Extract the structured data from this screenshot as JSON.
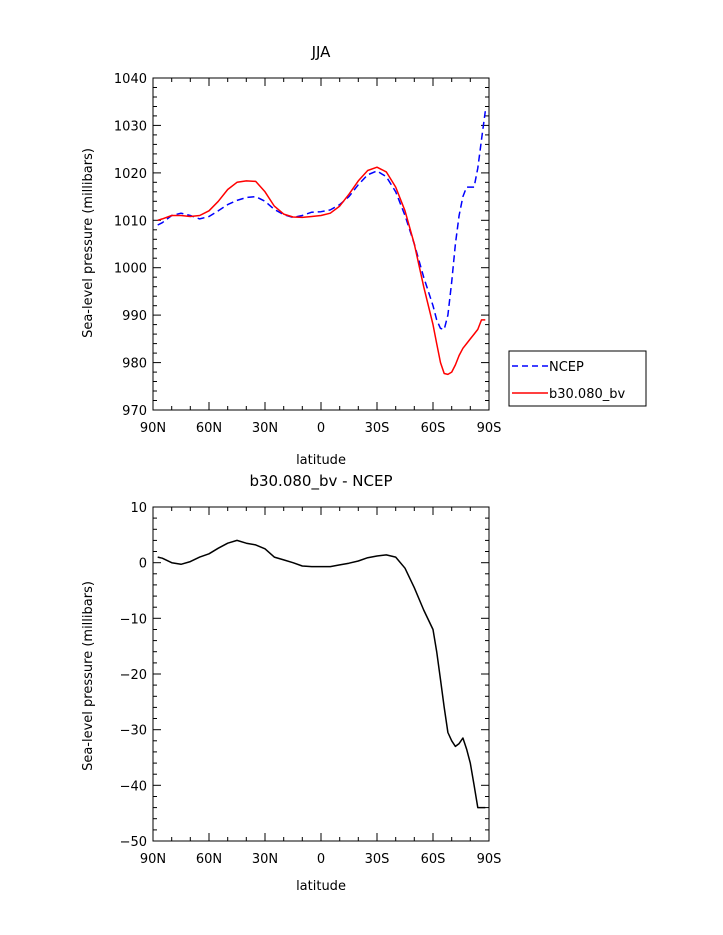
{
  "chart_data": [
    {
      "type": "line",
      "title": "JJA",
      "xlabel": "latitude",
      "ylabel": "Sea-level pressure (millibars)",
      "x_tick_labels": [
        "90N",
        "60N",
        "30N",
        "0",
        "30S",
        "60S",
        "90S"
      ],
      "x_ticks": [
        90,
        60,
        30,
        0,
        -30,
        -60,
        -90
      ],
      "xlim": [
        90,
        -90
      ],
      "ylim": [
        970,
        1040
      ],
      "y_ticks": [
        970,
        980,
        990,
        1000,
        1010,
        1020,
        1030,
        1040
      ],
      "grid": false,
      "legend_position": "right, outside lower",
      "series": [
        {
          "name": "NCEP",
          "color": "#0000ff",
          "style": "dashed",
          "x": [
            87.5,
            85,
            80,
            75,
            70,
            65,
            60,
            55,
            50,
            45,
            40,
            35,
            30,
            25,
            20,
            15,
            10,
            5,
            0,
            -5,
            -10,
            -15,
            -20,
            -25,
            -30,
            -35,
            -40,
            -45,
            -50,
            -55,
            -60,
            -62,
            -64,
            -66,
            -68,
            -70,
            -72,
            -74,
            -76,
            -78,
            -80,
            -82,
            -84,
            -86,
            -88
          ],
          "y": [
            1009.0,
            1009.5,
            1011.0,
            1011.5,
            1011.0,
            1010.3,
            1010.8,
            1012.0,
            1013.3,
            1014.2,
            1014.8,
            1015.0,
            1014.0,
            1012.3,
            1011.2,
            1010.6,
            1011.0,
            1011.7,
            1011.8,
            1012.2,
            1013.3,
            1015.0,
            1017.5,
            1019.6,
            1020.4,
            1019.2,
            1016.0,
            1011.0,
            1005.0,
            998.0,
            992.0,
            989.0,
            987.2,
            987.0,
            990.0,
            997.0,
            1005.0,
            1011.0,
            1015.0,
            1017.0,
            1017.0,
            1017.0,
            1021.0,
            1027.0,
            1033.0
          ]
        },
        {
          "name": "b30.080_bv",
          "color": "#ff0000",
          "style": "solid",
          "x": [
            87.5,
            85,
            80,
            75,
            70,
            65,
            60,
            55,
            50,
            45,
            40,
            35,
            30,
            25,
            20,
            15,
            10,
            5,
            0,
            -5,
            -10,
            -15,
            -20,
            -25,
            -30,
            -35,
            -40,
            -45,
            -50,
            -55,
            -60,
            -62,
            -64,
            -66,
            -68,
            -70,
            -72,
            -74,
            -76,
            -78,
            -80,
            -82,
            -84,
            -86,
            -88
          ],
          "y": [
            1010.0,
            1010.3,
            1011.0,
            1011.0,
            1010.8,
            1011.0,
            1012.0,
            1014.0,
            1016.5,
            1018.0,
            1018.3,
            1018.2,
            1016.0,
            1013.0,
            1011.3,
            1010.7,
            1010.6,
            1010.8,
            1011.0,
            1011.5,
            1013.0,
            1015.5,
            1018.3,
            1020.5,
            1021.2,
            1020.2,
            1017.0,
            1012.0,
            1005.0,
            996.0,
            988.0,
            984.0,
            980.0,
            977.7,
            977.5,
            978.0,
            979.5,
            981.5,
            983.0,
            984.0,
            985.0,
            986.0,
            987.0,
            989.0,
            989.0
          ]
        }
      ]
    },
    {
      "type": "line",
      "title": "b30.080_bv - NCEP",
      "xlabel": "latitude",
      "ylabel": "Sea-level pressure (millibars)",
      "x_tick_labels": [
        "90N",
        "60N",
        "30N",
        "0",
        "30S",
        "60S",
        "90S"
      ],
      "x_ticks": [
        90,
        60,
        30,
        0,
        -30,
        -60,
        -90
      ],
      "xlim": [
        90,
        -90
      ],
      "ylim": [
        -50,
        10
      ],
      "y_ticks": [
        -50,
        -40,
        -30,
        -20,
        -10,
        0,
        10
      ],
      "grid": false,
      "series": [
        {
          "color": "#000000",
          "style": "solid",
          "x": [
            87.5,
            85,
            80,
            75,
            70,
            65,
            60,
            55,
            50,
            45,
            40,
            35,
            30,
            25,
            20,
            15,
            10,
            5,
            0,
            -5,
            -10,
            -15,
            -20,
            -25,
            -30,
            -35,
            -40,
            -45,
            -50,
            -55,
            -60,
            -62,
            -64,
            -66,
            -68,
            -70,
            -72,
            -74,
            -76,
            -78,
            -80,
            -82,
            -84,
            -86,
            -88
          ],
          "y": [
            1.0,
            0.8,
            0.0,
            -0.3,
            0.2,
            1.0,
            1.6,
            2.6,
            3.5,
            4.0,
            3.5,
            3.2,
            2.5,
            1.0,
            0.5,
            0.0,
            -0.6,
            -0.7,
            -0.7,
            -0.7,
            -0.4,
            -0.1,
            0.3,
            0.9,
            1.2,
            1.4,
            1.0,
            -1.0,
            -4.5,
            -8.5,
            -12.0,
            -16.0,
            -21.0,
            -26.0,
            -30.5,
            -32.0,
            -33.0,
            -32.5,
            -31.5,
            -33.5,
            -36.0,
            -40.0,
            -44.0,
            -44.0,
            -44.0
          ]
        }
      ]
    }
  ]
}
